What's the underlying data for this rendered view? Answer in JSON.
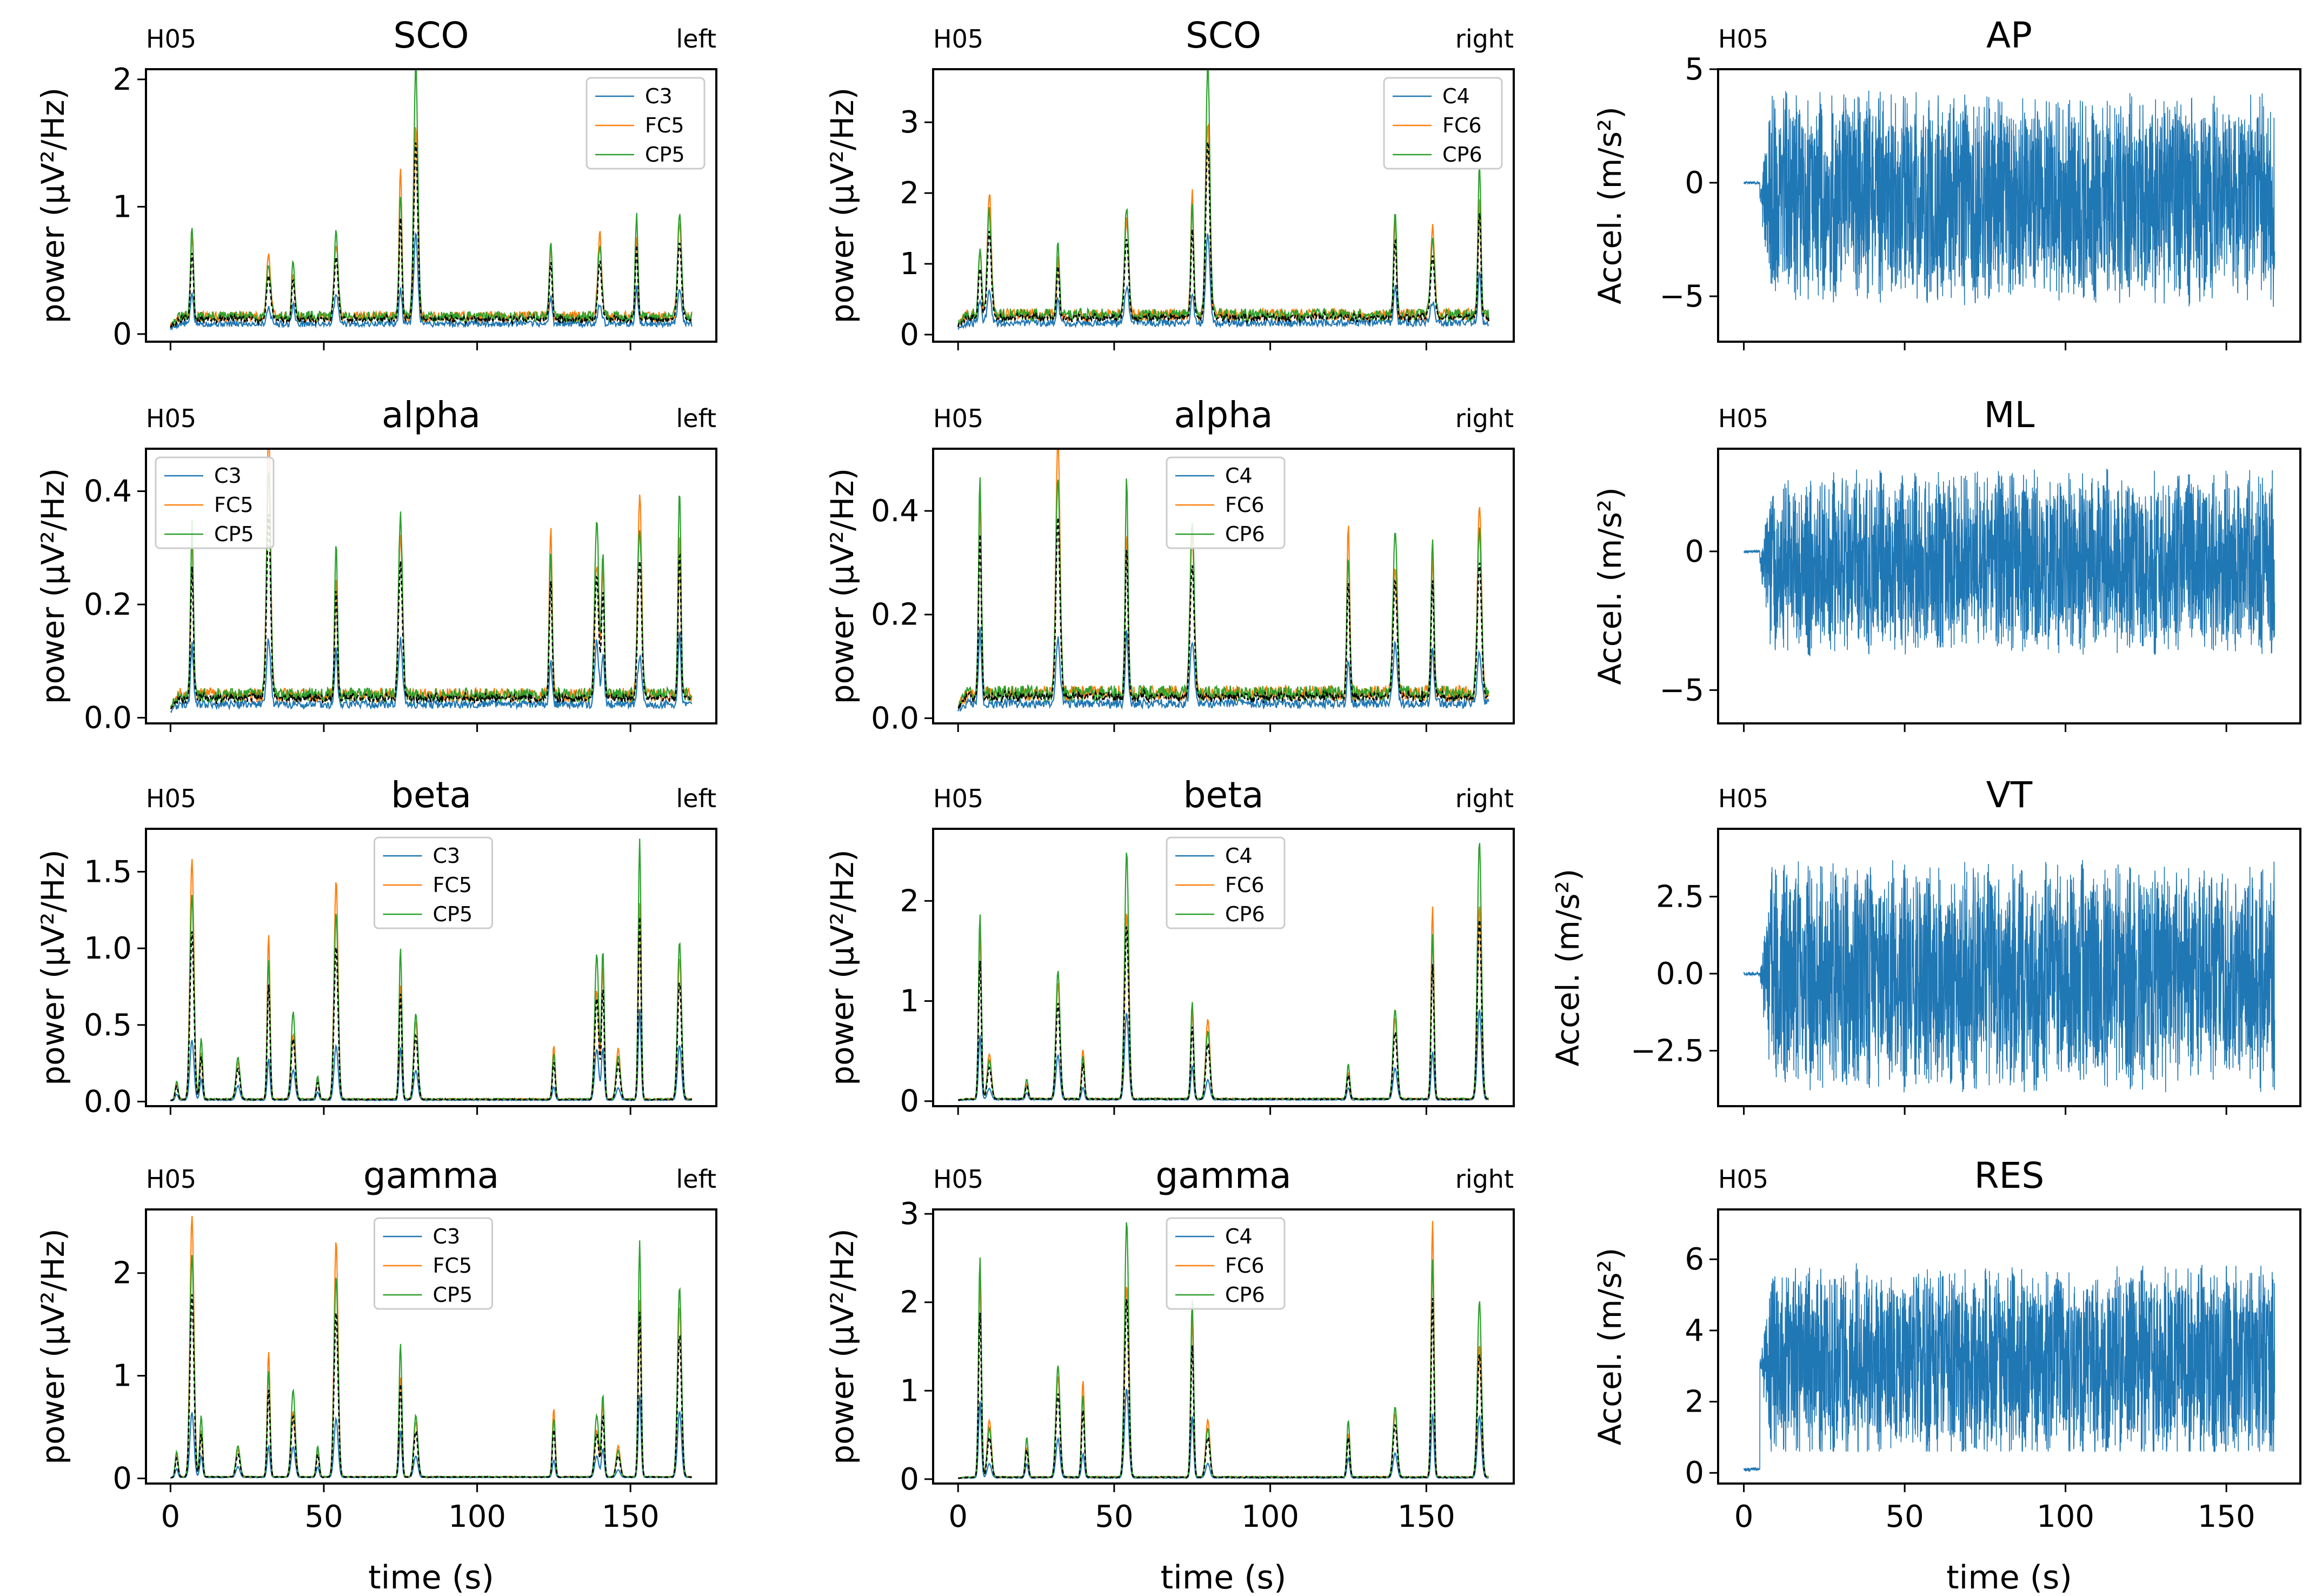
{
  "figure": {
    "subject": "H05",
    "x_label": "time (s)",
    "power_label": "power (μV²/Hz)",
    "accel_label": "Accel. (m/s²)",
    "colors": {
      "c1": "#1f77b4",
      "c2": "#ff7f0e",
      "c3": "#2ca02c",
      "mean": "#000000",
      "accel": "#1f77b4"
    }
  },
  "chart_data": [
    {
      "id": "sco-left",
      "type": "line",
      "panel": "power",
      "title": "SCO",
      "subject": "H05",
      "side": "left",
      "series": [
        {
          "name": "C3"
        },
        {
          "name": "FC5"
        },
        {
          "name": "CP5"
        },
        {
          "name": "mean"
        }
      ],
      "xlim": [
        -8,
        178
      ],
      "ylim": [
        -0.06,
        2.08
      ],
      "yticks": [
        "0",
        "1",
        "2"
      ],
      "ytick_values": [
        0,
        1,
        2
      ],
      "peaks": [
        [
          7,
          0.72
        ],
        [
          32,
          0.5
        ],
        [
          40,
          0.45
        ],
        [
          54,
          0.65
        ],
        [
          75,
          1.13
        ],
        [
          80,
          1.98
        ],
        [
          124,
          0.6
        ],
        [
          140,
          0.65
        ],
        [
          152,
          0.8
        ],
        [
          166,
          0.8
        ]
      ],
      "baseline": 0.17,
      "xlabel": "",
      "legend": "top-right"
    },
    {
      "id": "sco-right",
      "type": "line",
      "panel": "power",
      "title": "SCO",
      "subject": "H05",
      "side": "right",
      "series": [
        {
          "name": "C4"
        },
        {
          "name": "FC6"
        },
        {
          "name": "CP6"
        },
        {
          "name": "mean"
        }
      ],
      "xlim": [
        -8,
        178
      ],
      "ylim": [
        -0.1,
        3.75
      ],
      "yticks": [
        "0",
        "1",
        "2",
        "3"
      ],
      "ytick_values": [
        0,
        1,
        2,
        3
      ],
      "peaks": [
        [
          7,
          1.0
        ],
        [
          10,
          1.7
        ],
        [
          32,
          1.0
        ],
        [
          54,
          1.5
        ],
        [
          75,
          1.8
        ],
        [
          80,
          3.6
        ],
        [
          140,
          1.5
        ],
        [
          152,
          1.2
        ],
        [
          167,
          2.15
        ]
      ],
      "baseline": 0.35,
      "xlabel": "",
      "legend": "top-right"
    },
    {
      "id": "ap",
      "type": "line",
      "panel": "accel",
      "title": "AP",
      "subject": "H05",
      "side": "",
      "series": [
        {
          "name": "AP"
        }
      ],
      "xlim": [
        -8,
        173
      ],
      "ylim": [
        -7,
        5
      ],
      "yticks": [
        "−5",
        "0",
        "5"
      ],
      "ytick_values": [
        -5,
        0,
        5
      ],
      "center": -0.7,
      "amplitude": 4.8,
      "xlabel": "",
      "legend": "none"
    },
    {
      "id": "alpha-left",
      "type": "line",
      "panel": "power",
      "title": "alpha",
      "subject": "H05",
      "side": "left",
      "series": [
        {
          "name": "C3"
        },
        {
          "name": "FC5"
        },
        {
          "name": "CP5"
        },
        {
          "name": "mean"
        }
      ],
      "xlim": [
        -8,
        178
      ],
      "ylim": [
        -0.01,
        0.475
      ],
      "yticks": [
        "0.0",
        "0.2",
        "0.4"
      ],
      "ytick_values": [
        0,
        0.2,
        0.4
      ],
      "peaks": [
        [
          7,
          0.3
        ],
        [
          32,
          0.46
        ],
        [
          54,
          0.27
        ],
        [
          75,
          0.32
        ],
        [
          124,
          0.3
        ],
        [
          139,
          0.31
        ],
        [
          141,
          0.25
        ],
        [
          153,
          0.35
        ],
        [
          166,
          0.37
        ]
      ],
      "baseline": 0.05,
      "xlabel": "",
      "legend": "top-left"
    },
    {
      "id": "alpha-right",
      "type": "line",
      "panel": "power",
      "title": "alpha",
      "subject": "H05",
      "side": "right",
      "series": [
        {
          "name": "C4"
        },
        {
          "name": "FC6"
        },
        {
          "name": "CP6"
        },
        {
          "name": "mean"
        }
      ],
      "xlim": [
        -8,
        178
      ],
      "ylim": [
        -0.01,
        0.52
      ],
      "yticks": [
        "0.0",
        "0.2",
        "0.4"
      ],
      "ytick_values": [
        0,
        0.2,
        0.4
      ],
      "peaks": [
        [
          7,
          0.41
        ],
        [
          32,
          0.5
        ],
        [
          54,
          0.41
        ],
        [
          75,
          0.34
        ],
        [
          125,
          0.32
        ],
        [
          140,
          0.32
        ],
        [
          152,
          0.3
        ],
        [
          167,
          0.37
        ]
      ],
      "baseline": 0.06,
      "xlabel": "",
      "legend": "top-center"
    },
    {
      "id": "ml",
      "type": "line",
      "panel": "accel",
      "title": "ML",
      "subject": "H05",
      "side": "",
      "series": [
        {
          "name": "ML"
        }
      ],
      "xlim": [
        -8,
        173
      ],
      "ylim": [
        -6.2,
        3.7
      ],
      "yticks": [
        "−5",
        "0"
      ],
      "ytick_values": [
        -5,
        0
      ],
      "center": -0.4,
      "amplitude": 3.4,
      "xlabel": "",
      "legend": "none"
    },
    {
      "id": "beta-left",
      "type": "line",
      "panel": "power",
      "title": "beta",
      "subject": "H05",
      "side": "left",
      "series": [
        {
          "name": "C3"
        },
        {
          "name": "FC5"
        },
        {
          "name": "CP5"
        },
        {
          "name": "mean"
        }
      ],
      "xlim": [
        -8,
        178
      ],
      "ylim": [
        -0.03,
        1.78
      ],
      "yticks": [
        "0.0",
        "0.5",
        "1.0",
        "1.5"
      ],
      "ytick_values": [
        0,
        0.5,
        1,
        1.5
      ],
      "peaks": [
        [
          2,
          0.12
        ],
        [
          7,
          1.57
        ],
        [
          10,
          0.4
        ],
        [
          22,
          0.27
        ],
        [
          32,
          1.08
        ],
        [
          40,
          0.57
        ],
        [
          48,
          0.15
        ],
        [
          54,
          1.43
        ],
        [
          75,
          0.99
        ],
        [
          80,
          0.56
        ],
        [
          125,
          0.35
        ],
        [
          139,
          0.95
        ],
        [
          141,
          0.97
        ],
        [
          146,
          0.33
        ],
        [
          153,
          1.7
        ],
        [
          166,
          1.03
        ]
      ],
      "baseline": 0.02,
      "xlabel": "",
      "legend": "top-center"
    },
    {
      "id": "beta-right",
      "type": "line",
      "panel": "power",
      "title": "beta",
      "subject": "H05",
      "side": "right",
      "series": [
        {
          "name": "C4"
        },
        {
          "name": "FC6"
        },
        {
          "name": "CP6"
        },
        {
          "name": "mean"
        }
      ],
      "xlim": [
        -8,
        178
      ],
      "ylim": [
        -0.05,
        2.72
      ],
      "yticks": [
        "0",
        "1",
        "2"
      ],
      "ytick_values": [
        0,
        1,
        2
      ],
      "peaks": [
        [
          7,
          1.85
        ],
        [
          10,
          0.45
        ],
        [
          22,
          0.2
        ],
        [
          32,
          1.28
        ],
        [
          40,
          0.5
        ],
        [
          54,
          2.48
        ],
        [
          75,
          0.97
        ],
        [
          80,
          0.8
        ],
        [
          125,
          0.35
        ],
        [
          140,
          0.9
        ],
        [
          152,
          1.93
        ],
        [
          167,
          2.58
        ]
      ],
      "baseline": 0.03,
      "xlabel": "",
      "legend": "top-center"
    },
    {
      "id": "vt",
      "type": "line",
      "panel": "accel",
      "title": "VT",
      "subject": "H05",
      "side": "",
      "series": [
        {
          "name": "VT"
        }
      ],
      "xlim": [
        -8,
        173
      ],
      "ylim": [
        -4.3,
        4.7
      ],
      "yticks": [
        "−2.5",
        "0.0",
        "2.5"
      ],
      "ytick_values": [
        -2.5,
        0,
        2.5
      ],
      "center": -0.1,
      "amplitude": 3.8,
      "xlabel": "",
      "legend": "none"
    },
    {
      "id": "gamma-left",
      "type": "line",
      "panel": "power",
      "title": "gamma",
      "subject": "H05",
      "side": "left",
      "series": [
        {
          "name": "C3"
        },
        {
          "name": "FC5"
        },
        {
          "name": "CP5"
        },
        {
          "name": "mean"
        }
      ],
      "xlim": [
        -8,
        178
      ],
      "ylim": [
        -0.05,
        2.62
      ],
      "yticks": [
        "0",
        "1",
        "2"
      ],
      "ytick_values": [
        0,
        1,
        2
      ],
      "peaks": [
        [
          2,
          0.25
        ],
        [
          7,
          2.55
        ],
        [
          10,
          0.6
        ],
        [
          22,
          0.3
        ],
        [
          32,
          1.22
        ],
        [
          40,
          0.85
        ],
        [
          48,
          0.3
        ],
        [
          54,
          2.3
        ],
        [
          75,
          1.3
        ],
        [
          80,
          0.6
        ],
        [
          125,
          0.67
        ],
        [
          139,
          0.6
        ],
        [
          141,
          0.8
        ],
        [
          146,
          0.3
        ],
        [
          153,
          2.3
        ],
        [
          166,
          1.85
        ]
      ],
      "baseline": 0.02,
      "xlabel": "time (s)",
      "legend": "top-center"
    },
    {
      "id": "gamma-right",
      "type": "line",
      "panel": "power",
      "title": "gamma",
      "subject": "H05",
      "side": "right",
      "series": [
        {
          "name": "C4"
        },
        {
          "name": "FC6"
        },
        {
          "name": "CP6"
        },
        {
          "name": "mean"
        }
      ],
      "xlim": [
        -8,
        178
      ],
      "ylim": [
        -0.05,
        3.05
      ],
      "yticks": [
        "0",
        "1",
        "2",
        "3"
      ],
      "ytick_values": [
        0,
        1,
        2,
        3
      ],
      "peaks": [
        [
          7,
          2.5
        ],
        [
          10,
          0.65
        ],
        [
          22,
          0.45
        ],
        [
          32,
          1.27
        ],
        [
          40,
          1.1
        ],
        [
          54,
          2.9
        ],
        [
          75,
          2.0
        ],
        [
          80,
          0.65
        ],
        [
          125,
          0.65
        ],
        [
          140,
          0.8
        ],
        [
          152,
          2.9
        ],
        [
          167,
          2.0
        ]
      ],
      "baseline": 0.03,
      "xlabel": "time (s)",
      "legend": "top-center"
    },
    {
      "id": "res",
      "type": "line",
      "panel": "accel",
      "title": "RES",
      "subject": "H05",
      "side": "",
      "series": [
        {
          "name": "RES"
        }
      ],
      "xlim": [
        -8,
        173
      ],
      "ylim": [
        -0.3,
        7.4
      ],
      "yticks": [
        "0",
        "2",
        "4",
        "6"
      ],
      "ytick_values": [
        0,
        2,
        4,
        6
      ],
      "center": 3.1,
      "amplitude": 2.8,
      "xlabel": "time (s)",
      "legend": "none"
    }
  ],
  "x_ticks": [
    "0",
    "50",
    "100",
    "150"
  ],
  "x_tick_values": [
    0,
    50,
    100,
    150
  ]
}
